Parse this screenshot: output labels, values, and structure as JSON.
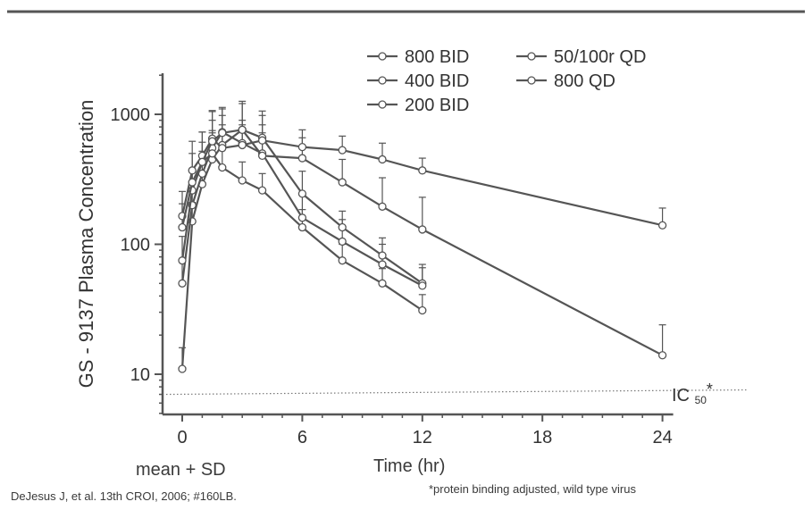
{
  "chart_data": {
    "type": "line",
    "title": "",
    "xlabel": "Time (hr)",
    "ylabel": "GS - 9137 Plasma Concentration",
    "xlim": [
      0,
      24
    ],
    "ylim": [
      5,
      2000
    ],
    "yscale": "log",
    "xticks": [
      0,
      6,
      12,
      18,
      24
    ],
    "yticks": [
      10,
      100,
      1000
    ],
    "grid": false,
    "legend": "top-right",
    "line_color": "#555555",
    "reference_line": {
      "label": "IC",
      "label_subscript": "50",
      "label_suffix": "*",
      "y": 7,
      "style": "dotted"
    },
    "series": [
      {
        "name": "800 BID",
        "x": [
          0,
          0.5,
          1,
          1.5,
          2,
          3,
          4,
          6,
          8,
          10,
          12
        ],
        "y": [
          11,
          150,
          290,
          450,
          580,
          760,
          660,
          245,
          135,
          82,
          50
        ],
        "sd": [
          5,
          60,
          130,
          300,
          400,
          500,
          400,
          120,
          45,
          30,
          20
        ]
      },
      {
        "name": "400 BID",
        "x": [
          0,
          0.5,
          1,
          1.5,
          2,
          3,
          4,
          6,
          8,
          10,
          12
        ],
        "y": [
          50,
          200,
          350,
          550,
          730,
          600,
          500,
          160,
          105,
          70,
          48
        ],
        "sd": [
          25,
          90,
          170,
          350,
          400,
          300,
          220,
          80,
          50,
          30,
          18
        ]
      },
      {
        "name": "200 BID",
        "x": [
          0,
          0.5,
          1,
          1.5,
          2,
          3,
          4,
          6,
          8,
          10,
          12
        ],
        "y": [
          75,
          260,
          430,
          500,
          390,
          310,
          260,
          135,
          75,
          50,
          31
        ],
        "sd": [
          40,
          100,
          180,
          220,
          150,
          120,
          90,
          50,
          25,
          15,
          10
        ]
      },
      {
        "name": "50/100r QD",
        "x": [
          0,
          0.5,
          1,
          1.5,
          2,
          3,
          4,
          6,
          8,
          10,
          12,
          24
        ],
        "y": [
          165,
          370,
          480,
          650,
          550,
          580,
          630,
          560,
          530,
          450,
          370,
          140
        ],
        "sd": [
          90,
          250,
          250,
          400,
          280,
          250,
          350,
          200,
          150,
          150,
          90,
          50
        ]
      },
      {
        "name": "800 QD",
        "x": [
          0,
          0.5,
          1,
          1.5,
          2,
          3,
          4,
          6,
          8,
          10,
          12,
          24
        ],
        "y": [
          135,
          300,
          430,
          620,
          720,
          760,
          480,
          460,
          300,
          195,
          130,
          14
        ],
        "sd": [
          70,
          200,
          300,
          450,
          380,
          450,
          350,
          200,
          150,
          130,
          100,
          10
        ]
      }
    ]
  },
  "notes": {
    "mean_sd": "mean + SD",
    "citation": "DeJesus J, et al. 13th CROI, 2006; #160LB.",
    "footnote": "*protein binding adjusted, wild type virus"
  }
}
